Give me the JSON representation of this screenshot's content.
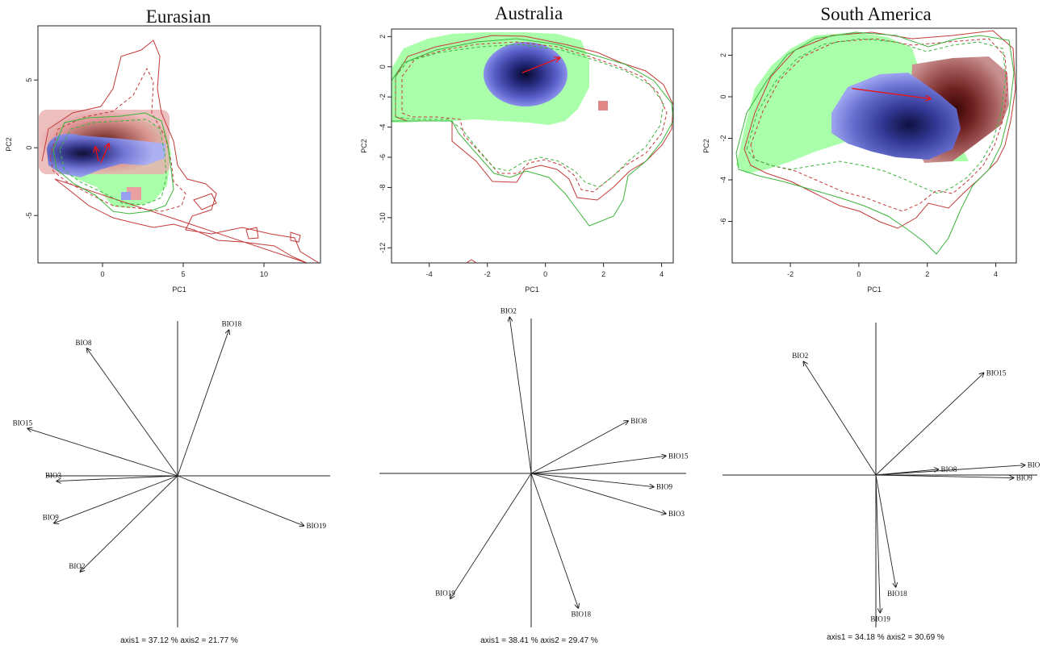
{
  "colors": {
    "native_density": "#1a1a6e",
    "native_light": "#9aa0f0",
    "invaded_density": "#5a1010",
    "invaded_light": "#e8a0a0",
    "background_env_fill": "#aaffaa",
    "contour_red": "#c43a3a",
    "contour_green": "#3cb43c",
    "arrow": "#ee1111"
  },
  "chart_data": [
    {
      "type": "scatter",
      "title": "Eurasian",
      "xlabel": "PC1",
      "ylabel": "PC2",
      "xlim": [
        -4,
        13.5
      ],
      "ylim": [
        -8.5,
        9
      ],
      "xticks": [
        0,
        5,
        10
      ],
      "yticks": [
        -5,
        0,
        5
      ],
      "centroid_shift": {
        "from": [
          -0.1,
          -1.1
        ],
        "to": [
          0.4,
          0.3
        ]
      }
    },
    {
      "type": "scatter",
      "title": "Australia",
      "xlabel": "PC1",
      "ylabel": "PC2",
      "xlim": [
        -5.3,
        4.4
      ],
      "ylim": [
        -13,
        2.5
      ],
      "xticks": [
        -4,
        -2,
        0,
        2,
        4
      ],
      "yticks": [
        2,
        0,
        -2,
        -4,
        -6,
        -8,
        -10,
        -12
      ],
      "centroid_shift": {
        "from": [
          -0.8,
          -0.4
        ],
        "to": [
          0.5,
          0.6
        ]
      }
    },
    {
      "type": "scatter",
      "title": "South America",
      "xlabel": "PC1",
      "ylabel": "PC2",
      "xlim": [
        -3.7,
        4.6
      ],
      "ylim": [
        -8,
        3.3
      ],
      "xticks": [
        -2,
        0,
        2,
        4
      ],
      "yticks": [
        2,
        0,
        -2,
        -4,
        -6
      ],
      "centroid_shift": {
        "from": [
          -0.2,
          0.4
        ],
        "to": [
          2.1,
          -0.1
        ]
      }
    },
    {
      "type": "scatter",
      "title": "",
      "caption": "axis1 = 37.12 % axis2 = 21.77 %",
      "vectors": [
        {
          "name": "BIO18",
          "dx": 0.39,
          "dy": 1.11
        },
        {
          "name": "BIO8",
          "dx": -0.69,
          "dy": 0.97
        },
        {
          "name": "BIO15",
          "dx": -1.14,
          "dy": 0.36
        },
        {
          "name": "BIO3",
          "dx": -0.92,
          "dy": -0.04
        },
        {
          "name": "BIO9",
          "dx": -0.94,
          "dy": -0.36
        },
        {
          "name": "BIO2",
          "dx": -0.74,
          "dy": -0.73
        },
        {
          "name": "BIO19",
          "dx": 0.96,
          "dy": -0.38
        }
      ]
    },
    {
      "type": "scatter",
      "title": "",
      "caption": "axis1 = 38.41 % axis2 = 29.47 %",
      "vectors": [
        {
          "name": "BIO2",
          "dx": -0.16,
          "dy": 1.16
        },
        {
          "name": "BIO8",
          "dx": 0.72,
          "dy": 0.39
        },
        {
          "name": "BIO15",
          "dx": 1.0,
          "dy": 0.13
        },
        {
          "name": "BIO9",
          "dx": 0.91,
          "dy": -0.1
        },
        {
          "name": "BIO3",
          "dx": 1.0,
          "dy": -0.3
        },
        {
          "name": "BIO18",
          "dx": 0.35,
          "dy": -1.0
        },
        {
          "name": "BIO19",
          "dx": -0.6,
          "dy": -0.93
        }
      ]
    },
    {
      "type": "scatter",
      "title": "",
      "caption": "axis1 = 34.18 % axis2 = 30.69 %",
      "vectors": [
        {
          "name": "BIO2",
          "dx": -0.51,
          "dy": 0.8
        },
        {
          "name": "BIO15",
          "dx": 0.76,
          "dy": 0.72
        },
        {
          "name": "BIO8",
          "dx": 0.44,
          "dy": 0.04
        },
        {
          "name": "BIO",
          "dx": 1.05,
          "dy": 0.07
        },
        {
          "name": "BIO9",
          "dx": 0.97,
          "dy": -0.02
        },
        {
          "name": "BIO18",
          "dx": 0.14,
          "dy": -0.79
        },
        {
          "name": "BIO19",
          "dx": 0.03,
          "dy": -0.97
        }
      ]
    }
  ]
}
